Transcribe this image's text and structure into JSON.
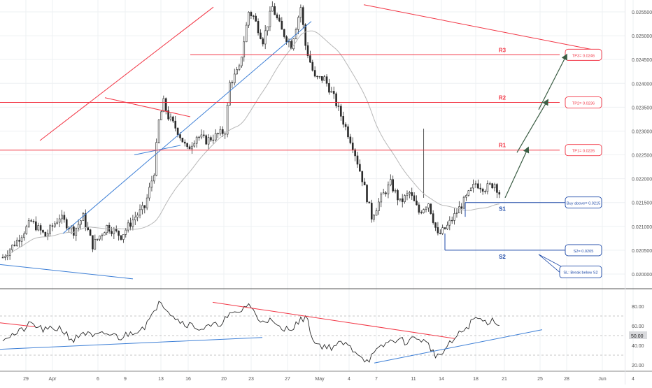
{
  "chart_data": [
    {
      "type": "candlestick",
      "title": "",
      "xlabel": "",
      "ylabel": "",
      "ylim": [
        0.01995,
        0.02575
      ],
      "grid": true,
      "x_ticks": [
        "29",
        "Apr",
        "6",
        "9",
        "13",
        "16",
        "20",
        "23",
        "27",
        "May",
        "4",
        "7",
        "11",
        "14",
        "18",
        "21",
        "25",
        "28",
        "Jun",
        "4"
      ],
      "y_ticks": [
        "0.025500",
        "0.025000",
        "0.024500",
        "0.024000",
        "0.023500",
        "0.023000",
        "0.022500",
        "0.022000",
        "0.021500",
        "0.021000",
        "0.020500",
        "0.020000"
      ],
      "close_path": [
        [
          0,
          0.02035
        ],
        [
          6,
          0.0207
        ],
        [
          12,
          0.0211
        ],
        [
          18,
          0.0208
        ],
        [
          24,
          0.0212
        ],
        [
          30,
          0.0209
        ],
        [
          34,
          0.0212
        ],
        [
          38,
          0.0206
        ],
        [
          44,
          0.021
        ],
        [
          50,
          0.0208
        ],
        [
          56,
          0.0212
        ],
        [
          60,
          0.0214
        ],
        [
          64,
          0.02215
        ],
        [
          66,
          0.0232
        ],
        [
          68,
          0.0236
        ],
        [
          70,
          0.0233
        ],
        [
          74,
          0.023
        ],
        [
          78,
          0.0226
        ],
        [
          82,
          0.0229
        ],
        [
          86,
          0.0228
        ],
        [
          90,
          0.0229
        ],
        [
          94,
          0.023
        ],
        [
          96,
          0.024
        ],
        [
          100,
          0.0243
        ],
        [
          104,
          0.0255
        ],
        [
          106,
          0.0254
        ],
        [
          110,
          0.0249
        ],
        [
          114,
          0.0256
        ],
        [
          118,
          0.0251
        ],
        [
          122,
          0.0248
        ],
        [
          126,
          0.0256
        ],
        [
          128,
          0.0248
        ],
        [
          132,
          0.0241
        ],
        [
          136,
          0.0241
        ],
        [
          140,
          0.0237
        ],
        [
          144,
          0.0232
        ],
        [
          148,
          0.0227
        ],
        [
          152,
          0.022
        ],
        [
          156,
          0.0212
        ],
        [
          160,
          0.0216
        ],
        [
          164,
          0.0219
        ],
        [
          168,
          0.0215
        ],
        [
          172,
          0.0217
        ],
        [
          176,
          0.0213
        ],
        [
          180,
          0.0215
        ],
        [
          184,
          0.0208
        ],
        [
          188,
          0.021
        ],
        [
          192,
          0.0213
        ],
        [
          196,
          0.0216
        ],
        [
          200,
          0.0219
        ],
        [
          204,
          0.0218
        ],
        [
          208,
          0.0219
        ],
        [
          210,
          0.0217
        ]
      ],
      "price_levels": [
        {
          "name": "R3",
          "value": 0.0246,
          "tag": "TP3= 0.0246"
        },
        {
          "name": "R2",
          "value": 0.0236,
          "tag": "TP2= 0.0236"
        },
        {
          "name": "R1",
          "value": 0.0226,
          "tag": "TP1= 0.0226"
        },
        {
          "name": "S1",
          "value": 0.0215,
          "tag": "Buy above= 0.0215"
        },
        {
          "name": "S2",
          "value": 0.0205,
          "tag": "S2= 0.0205"
        }
      ],
      "annotations": [
        "SL: Break below S2"
      ],
      "moving_average": "grey line"
    },
    {
      "type": "line",
      "indicator": "RSI",
      "ylim": [
        15,
        95
      ],
      "y_ticks": [
        "80.00",
        "60.00",
        "40.00",
        "20.00"
      ],
      "highlighted_tick": "50.00",
      "reference_levels": [
        70,
        50,
        30
      ],
      "series": [
        {
          "points": [
            [
              0,
              48
            ],
            [
              6,
              52
            ],
            [
              12,
              62
            ],
            [
              18,
              55
            ],
            [
              24,
              58
            ],
            [
              30,
              45
            ],
            [
              34,
              54
            ],
            [
              38,
              48
            ],
            [
              44,
              52
            ],
            [
              50,
              48
            ],
            [
              56,
              55
            ],
            [
              60,
              60
            ],
            [
              64,
              72
            ],
            [
              66,
              88
            ],
            [
              70,
              76
            ],
            [
              74,
              66
            ],
            [
              78,
              62
            ],
            [
              84,
              57
            ],
            [
              90,
              60
            ],
            [
              96,
              70
            ],
            [
              100,
              74
            ],
            [
              104,
              83
            ],
            [
              108,
              66
            ],
            [
              112,
              67
            ],
            [
              118,
              55
            ],
            [
              124,
              61
            ],
            [
              128,
              70
            ],
            [
              132,
              42
            ],
            [
              138,
              38
            ],
            [
              144,
              42
            ],
            [
              150,
              33
            ],
            [
              154,
              24
            ],
            [
              158,
              33
            ],
            [
              162,
              42
            ],
            [
              166,
              46
            ],
            [
              170,
              44
            ],
            [
              176,
              48
            ],
            [
              180,
              40
            ],
            [
              184,
              28
            ],
            [
              188,
              38
            ],
            [
              192,
              49
            ],
            [
              196,
              58
            ],
            [
              200,
              68
            ],
            [
              204,
              64
            ],
            [
              208,
              66
            ],
            [
              210,
              62
            ]
          ]
        }
      ]
    }
  ],
  "colors": {
    "resistance": "#f23645",
    "support": "#1e4aa8",
    "trend_blue": "#3d7fd6",
    "moving_average": "#b8b8b8",
    "candle": "#2a2a2a",
    "rsi_line": "#2b2b2b",
    "arrow": "#3b5d44",
    "grid": "#eef0f3",
    "axis_text": "#555555"
  }
}
